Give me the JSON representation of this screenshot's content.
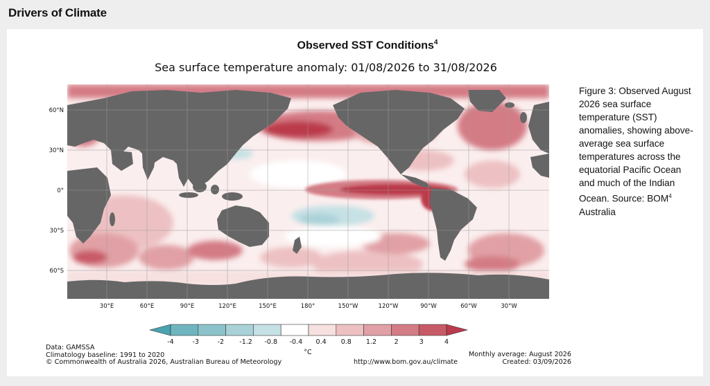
{
  "page": {
    "section_title": "Drivers of Climate"
  },
  "figure": {
    "title": "Observed SST Conditions",
    "title_superscript": "4",
    "subtitle": "Sea surface temperature anomaly: 01/08/2026 to 31/08/2026",
    "lat_labels": [
      "60°N",
      "30°N",
      "0°",
      "30°S",
      "60°S"
    ],
    "lon_labels": [
      "30°E",
      "60°E",
      "90°E",
      "120°E",
      "150°E",
      "180°",
      "150°W",
      "120°W",
      "90°W",
      "60°W",
      "30°W"
    ],
    "colorbar": {
      "labels": [
        "-4",
        "-3",
        "-2",
        "-1.2",
        "-0.8",
        "-0.4",
        "0.4",
        "0.8",
        "1.2",
        "2",
        "3",
        "4"
      ],
      "colors": [
        "#4aa3b0",
        "#6fb5bf",
        "#8cc3cb",
        "#a9d2d8",
        "#c6e1e5",
        "#ffffff",
        "#f6e0e0",
        "#edc1c3",
        "#e1a0a5",
        "#d47c85",
        "#c85a67",
        "#bb3a4c"
      ],
      "unit": "°C"
    },
    "colors": {
      "land": "#666666",
      "warm_strong": "#bb3a4c",
      "warm_medium": "#d47c85",
      "warm_light": "#edc1c3",
      "cool_light": "#a9d2d8",
      "ice": "#ffffff"
    },
    "footer": {
      "data": "Data: GAMSSA",
      "baseline": "Climatology baseline: 1991 to 2020",
      "copyright": "© Commonwealth of Australia 2026, Australian Bureau of Meteorology",
      "monthly": "Monthly average: August 2026",
      "url": "http://www.bom.gov.au/climate",
      "created": "Created: 03/09/2026"
    }
  },
  "caption": {
    "text_before": "Figure 3: Observed August 2026 sea surface temperature (SST) anomalies, showing above-average sea surface temperatures across the equatorial Pacific Ocean and much of the Indian Ocean. Source: BOM",
    "superscript": "4",
    "text_after": " Australia"
  }
}
